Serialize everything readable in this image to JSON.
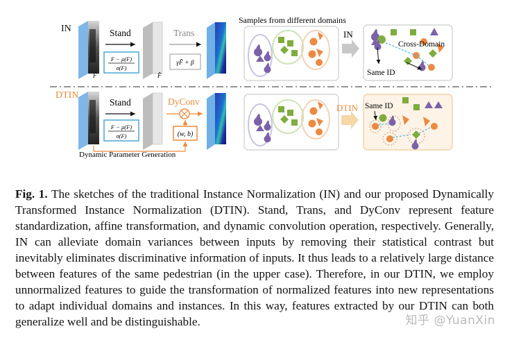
{
  "figure": {
    "in_row": {
      "label": "IN",
      "stand_label": "Stand",
      "formula_num": "F − μ(F)",
      "formula_den": "σ(F)",
      "trans_label": "Trans",
      "affine_formula": "γF̂ + β",
      "feature_symbol": "F",
      "normalized_symbol": "F̂",
      "samples_title": "Samples from different domains",
      "arrow_label": "IN",
      "cross_domain_label": "Cross-Domain",
      "same_id_label": "Same ID"
    },
    "dtin_row": {
      "label": "DTIN",
      "stand_label": "Stand",
      "formula_num": "F − μ(F)",
      "formula_den": "σ(F)",
      "dyconv_label": "DyConv",
      "param_formula": "(w, b)",
      "dyn_param_label": "Dynamic Parameter Generation",
      "arrow_label": "DTIN",
      "same_id_label": "Same ID"
    },
    "colors": {
      "purple": "#7b62a8",
      "green": "#7fac3e",
      "orange": "#ec8a42",
      "dtin_orange": "#ec8a3c",
      "formula_blue": "#4aa7d6"
    }
  },
  "caption": {
    "fig_label": "Fig. 1.",
    "text": "The sketches of the traditional Instance Normalization (IN) and our proposed Dynamically Transformed Instance Normalization (DTIN). Stand, Trans, and DyConv represent feature standardization, affine transformation, and dynamic convolution operation, respectively. Generally, IN can alleviate domain variances between inputs by removing their statistical contrast but inevitably eliminates discriminative information of inputs. It thus leads to a relatively large distance between features of the same pedestrian (in the upper case). Therefore, in our DTIN, we employ unnormalized features to guide the transformation of normalized features into new representations to adapt individual domains and instances. In this way, features extracted by our DTIN can both generalize well and be distinguishable."
  },
  "watermark": "知乎 @YuanXin"
}
